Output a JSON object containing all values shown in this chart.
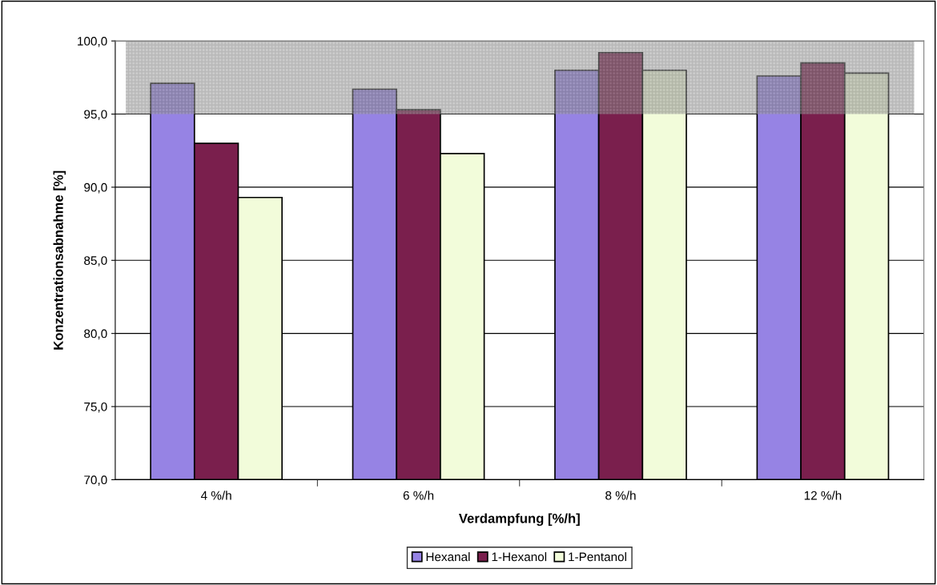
{
  "chart_data": {
    "type": "bar",
    "xlabel": "Verdampfung [%/h]",
    "ylabel": "Konzentrationsabnahme [%]",
    "categories": [
      "4 %/h",
      "6 %/h",
      "8 %/h",
      "12 %/h"
    ],
    "series": [
      {
        "name": "Hexanal",
        "color": "#9683e4",
        "values": [
          97.1,
          96.7,
          98.0,
          97.6
        ]
      },
      {
        "name": "1-Hexanol",
        "color": "#7a1f4d",
        "values": [
          93.0,
          95.3,
          99.2,
          98.5
        ]
      },
      {
        "name": "1-Pentanol",
        "color": "#f2fcda",
        "values": [
          89.3,
          92.3,
          98.0,
          97.8
        ]
      }
    ],
    "ylim": [
      70,
      100
    ],
    "yticks": [
      {
        "value": 70,
        "label": "70,0"
      },
      {
        "value": 75,
        "label": "75,0"
      },
      {
        "value": 80,
        "label": "80,0"
      },
      {
        "value": 85,
        "label": "85,0"
      },
      {
        "value": 90,
        "label": "90,0"
      },
      {
        "value": 95,
        "label": "95,0"
      },
      {
        "value": 100,
        "label": "100,0"
      }
    ],
    "bands": [
      {
        "axis": "y",
        "from": 95,
        "to": 100,
        "color": "#a0a0a0"
      }
    ],
    "grid": "y",
    "legend": "bottom"
  }
}
